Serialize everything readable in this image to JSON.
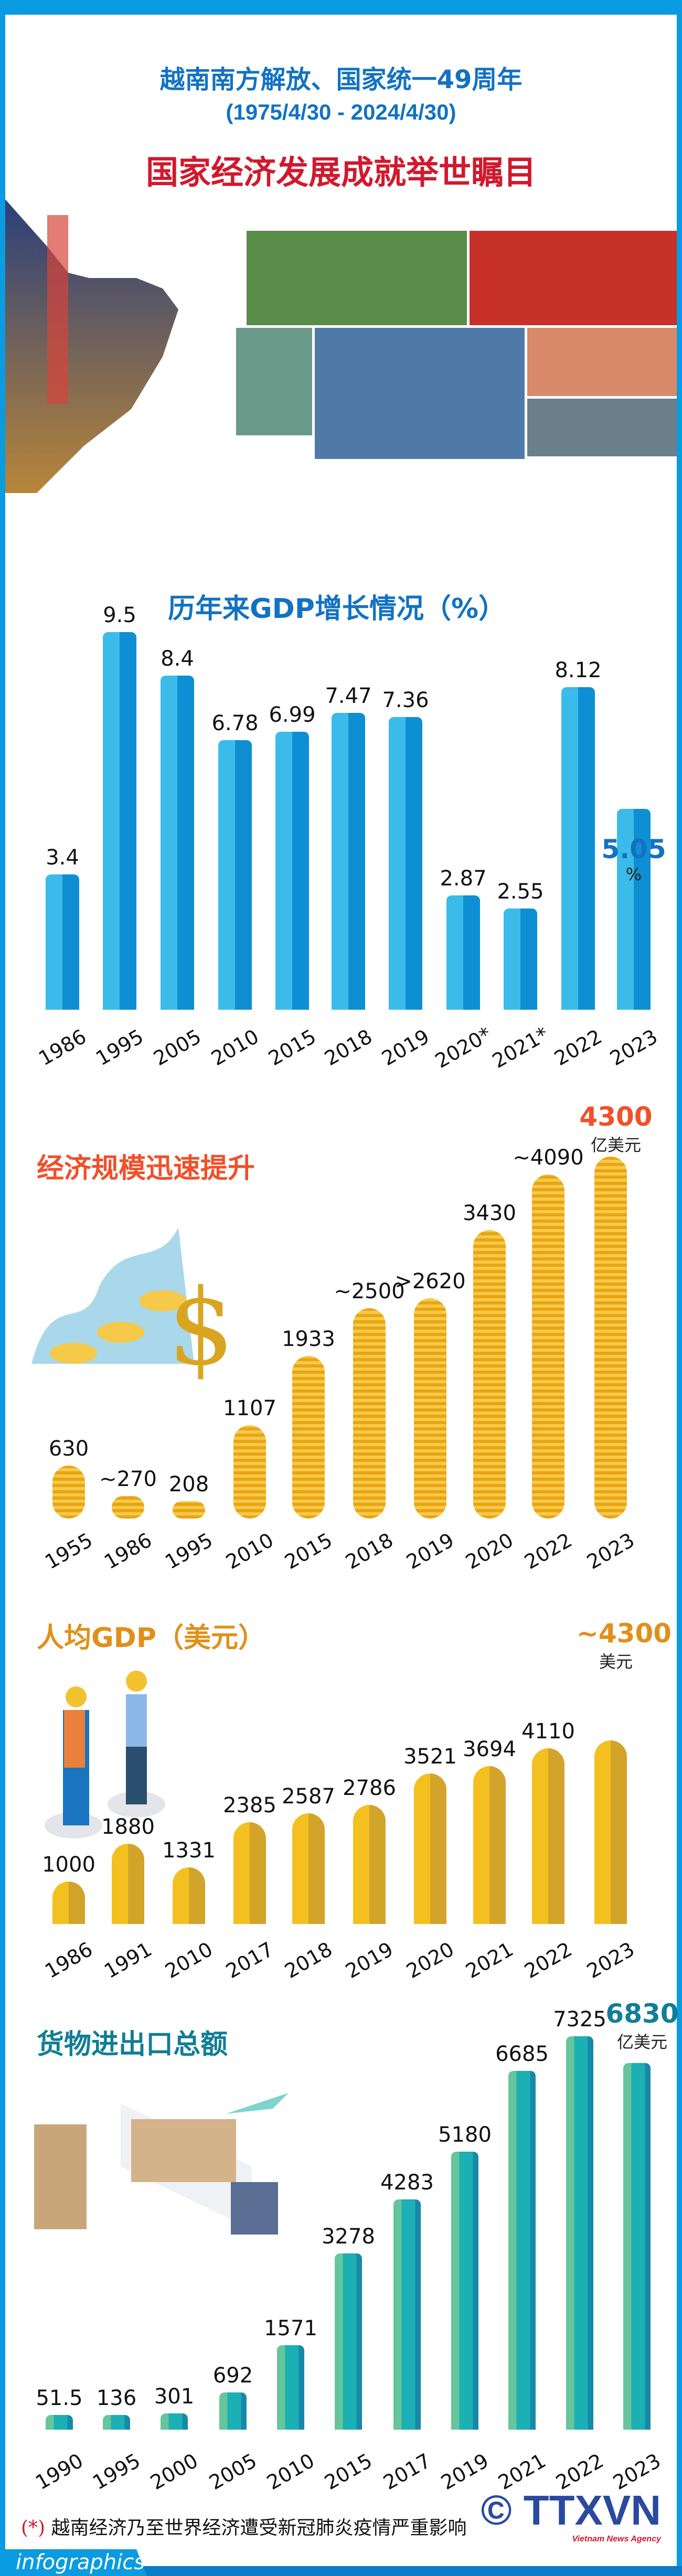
{
  "header": {
    "title_line1": "越南南方解放、国家统一49周年",
    "title_line2": "(1975/4/30 - 2024/4/30)",
    "title_main": "国家经济发展成就举世瞩目"
  },
  "colors": {
    "frame": "#0a9be0",
    "title_blue": "#1272c2",
    "title_red": "#d0192e",
    "gdp_bar": "#1aa6e4",
    "coin": "#f2b51c",
    "per_capita_bar": "#efb51c",
    "trade_bar": "#1bb0b3",
    "econ_heading": "#f0502a",
    "per_capita_heading": "#e0901a",
    "trade_heading": "#117e95"
  },
  "chart_data": [
    {
      "type": "bar",
      "title": "历年来GDP增长情况（%）",
      "categories": [
        "1986",
        "1995",
        "2005",
        "2010",
        "2015",
        "2018",
        "2019",
        "2020*",
        "2021*",
        "2022",
        "2023"
      ],
      "values": [
        3.4,
        9.5,
        8.4,
        6.78,
        6.99,
        7.47,
        7.36,
        2.87,
        2.55,
        8.12,
        5.05
      ],
      "labels": [
        "3.4",
        "9.5",
        "8.4",
        "6.78",
        "6.99",
        "7.47",
        "7.36",
        "2.87",
        "2.55",
        "8.12",
        "5.05"
      ],
      "highlight": {
        "value": "5.05",
        "unit": "%"
      }
    },
    {
      "type": "bar",
      "title": "经济规模迅速提升",
      "categories": [
        "1955",
        "1986",
        "1995",
        "2010",
        "2015",
        "2018",
        "2019",
        "2020",
        "2022",
        "2023"
      ],
      "values": [
        630,
        270,
        208,
        1107,
        1933,
        2500,
        2620,
        3430,
        4090,
        4300
      ],
      "labels": [
        "630",
        "~270",
        "208",
        "1107",
        "1933",
        "~2500",
        ">2620",
        "3430",
        "~4090",
        "4300"
      ],
      "highlight": {
        "value": "4300",
        "unit": "亿美元"
      }
    },
    {
      "type": "bar",
      "title": "人均GDP（美元）",
      "categories": [
        "1986",
        "1991",
        "2010",
        "2017",
        "2018",
        "2019",
        "2020",
        "2021",
        "2022",
        "2023"
      ],
      "values": [
        1000,
        1880,
        1331,
        2385,
        2587,
        2786,
        3521,
        3694,
        4110,
        4300
      ],
      "labels": [
        "1000",
        "1880",
        "1331",
        "2385",
        "2587",
        "2786",
        "3521",
        "3694",
        "4110",
        "~4300"
      ],
      "highlight": {
        "value": "~4300",
        "unit": "美元"
      }
    },
    {
      "type": "bar",
      "title": "货物进出口总额",
      "categories": [
        "1990",
        "1995",
        "2000",
        "2005",
        "2010",
        "2015",
        "2017",
        "2019",
        "2021",
        "2022",
        "2023"
      ],
      "values": [
        51.5,
        136,
        301,
        692,
        1571,
        3278,
        4283,
        5180,
        6685,
        7325,
        6830
      ],
      "labels": [
        "51.5",
        "136",
        "301",
        "692",
        "1571",
        "3278",
        "4283",
        "5180",
        "6685",
        "7325",
        "6830"
      ],
      "highlight": {
        "value": "6830",
        "unit": "亿美元"
      }
    }
  ],
  "footnote": {
    "mark": "(*)",
    "text": "越南经济乃至世界经济遭受新冠肺炎疫情严重影响"
  },
  "footer": {
    "site": "infographics.vn",
    "logo": "© TTXVN",
    "logo_sub": "Vietnam News Agency"
  }
}
